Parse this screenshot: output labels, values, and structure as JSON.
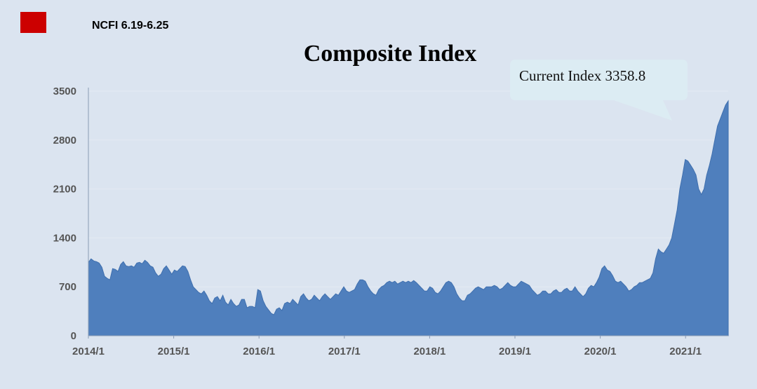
{
  "header": {
    "brand_color": "#cc0000",
    "label": "NCFI 6.19-6.25"
  },
  "chart_data": {
    "type": "area",
    "title": "Composite Index",
    "xlabel": "",
    "ylabel": "",
    "ylim": [
      0,
      3500
    ],
    "yticks": [
      "0",
      "700",
      "1400",
      "2100",
      "2800",
      "3500"
    ],
    "xticks": [
      "2014/1",
      "2015/1",
      "2016/1",
      "2017/1",
      "2018/1",
      "2019/1",
      "2020/1",
      "2021/1"
    ],
    "grid": true,
    "color": "#4f7fbd",
    "annotation": "Current Index 3358.8",
    "x_start": "2014/1",
    "x_end": "2021/6",
    "values": [
      1050,
      1100,
      1070,
      1060,
      1040,
      980,
      850,
      820,
      800,
      960,
      950,
      920,
      1020,
      1060,
      1000,
      990,
      1000,
      980,
      1040,
      1050,
      1030,
      1080,
      1050,
      1000,
      980,
      900,
      850,
      880,
      960,
      1000,
      940,
      880,
      940,
      920,
      960,
      1000,
      990,
      920,
      800,
      700,
      660,
      620,
      600,
      640,
      580,
      500,
      460,
      540,
      560,
      500,
      580,
      480,
      440,
      520,
      460,
      420,
      440,
      520,
      520,
      400,
      420,
      420,
      400,
      660,
      640,
      500,
      420,
      370,
      320,
      300,
      380,
      400,
      360,
      460,
      480,
      460,
      520,
      480,
      440,
      560,
      600,
      540,
      500,
      520,
      580,
      540,
      500,
      560,
      600,
      560,
      520,
      560,
      600,
      580,
      640,
      700,
      640,
      620,
      640,
      660,
      740,
      800,
      800,
      780,
      700,
      640,
      600,
      580,
      660,
      700,
      720,
      760,
      780,
      760,
      780,
      740,
      760,
      780,
      760,
      780,
      760,
      790,
      760,
      720,
      680,
      640,
      640,
      700,
      680,
      620,
      600,
      640,
      700,
      760,
      780,
      760,
      700,
      600,
      540,
      500,
      500,
      580,
      600,
      640,
      680,
      700,
      680,
      660,
      700,
      700,
      700,
      720,
      700,
      660,
      680,
      720,
      760,
      720,
      700,
      700,
      740,
      780,
      760,
      740,
      720,
      660,
      620,
      580,
      600,
      640,
      640,
      600,
      600,
      640,
      660,
      620,
      620,
      660,
      680,
      640,
      640,
      700,
      640,
      600,
      560,
      600,
      680,
      720,
      700,
      760,
      840,
      960,
      1000,
      940,
      920,
      860,
      780,
      760,
      780,
      740,
      700,
      640,
      660,
      700,
      720,
      760,
      760,
      780,
      800,
      820,
      900,
      1100,
      1240,
      1200,
      1180,
      1240,
      1300,
      1400,
      1600,
      1800,
      2100,
      2300,
      2520,
      2500,
      2440,
      2380,
      2300,
      2100,
      2020,
      2100,
      2300,
      2440,
      2600,
      2800,
      3000,
      3100,
      3200,
      3300,
      3358.8
    ]
  }
}
